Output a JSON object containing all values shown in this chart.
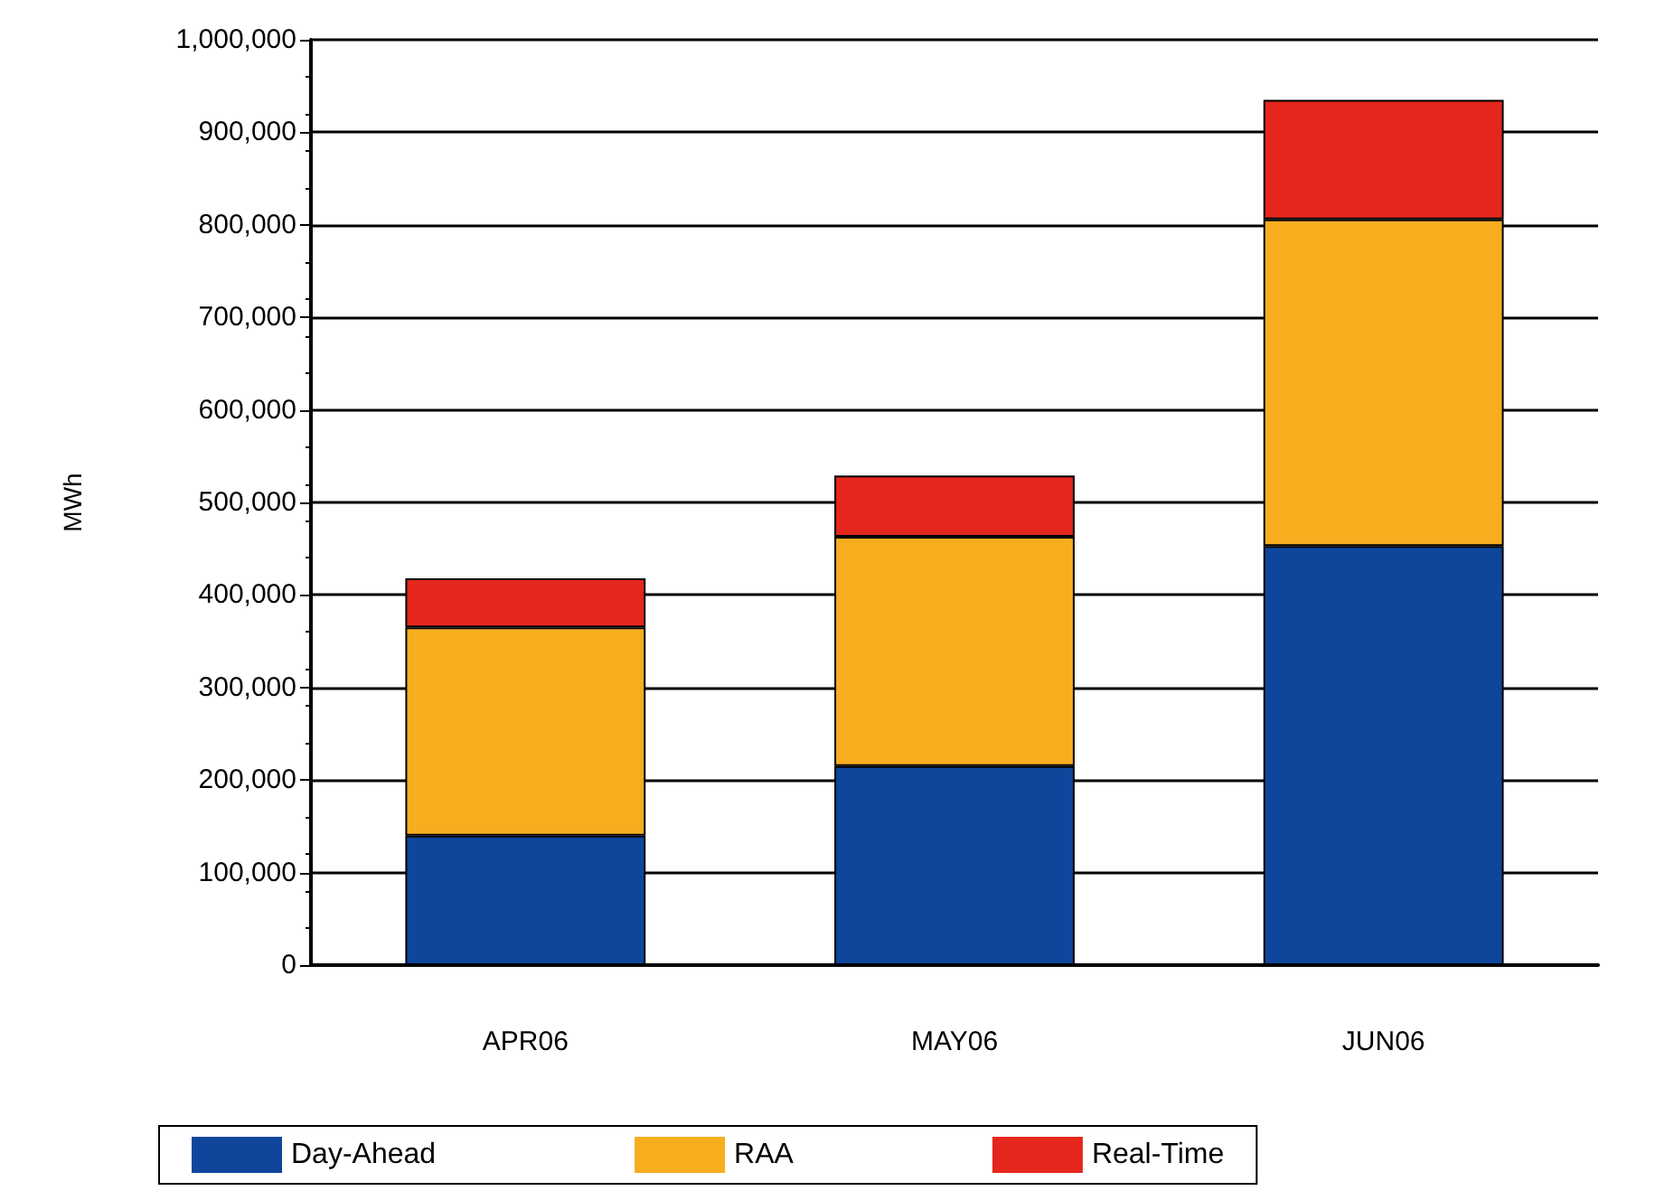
{
  "chart_data": {
    "type": "bar",
    "stacked": true,
    "ylabel": "MWh",
    "categories": [
      "APR06",
      "MAY06",
      "JUN06"
    ],
    "series": [
      {
        "name": "Day-Ahead",
        "color": "#0f469c",
        "values": [
          140000,
          215000,
          453000
        ]
      },
      {
        "name": "RAA",
        "color": "#f6ae1f",
        "values": [
          225000,
          248000,
          353000
        ]
      },
      {
        "name": "Real-Time",
        "color": "#e5261c",
        "values": [
          53000,
          66000,
          129000
        ]
      }
    ],
    "ylim": [
      0,
      1000000
    ],
    "yticks": [
      0,
      {
        "value": 100000,
        "label": "100,000"
      },
      {
        "value": 200000,
        "label": "200,000"
      },
      {
        "value": 300000,
        "label": "300,000"
      },
      {
        "value": 400000,
        "label": "400,000"
      },
      {
        "value": 500000,
        "label": "500,000"
      },
      {
        "value": 600000,
        "label": "600,000"
      },
      {
        "value": 700000,
        "label": "700,000"
      },
      {
        "value": 800000,
        "label": "800,000"
      },
      {
        "value": 900000,
        "label": "900,000"
      },
      {
        "value": 1000000,
        "label": "1,000,000"
      }
    ],
    "grid": "y",
    "legend": "bottom"
  }
}
